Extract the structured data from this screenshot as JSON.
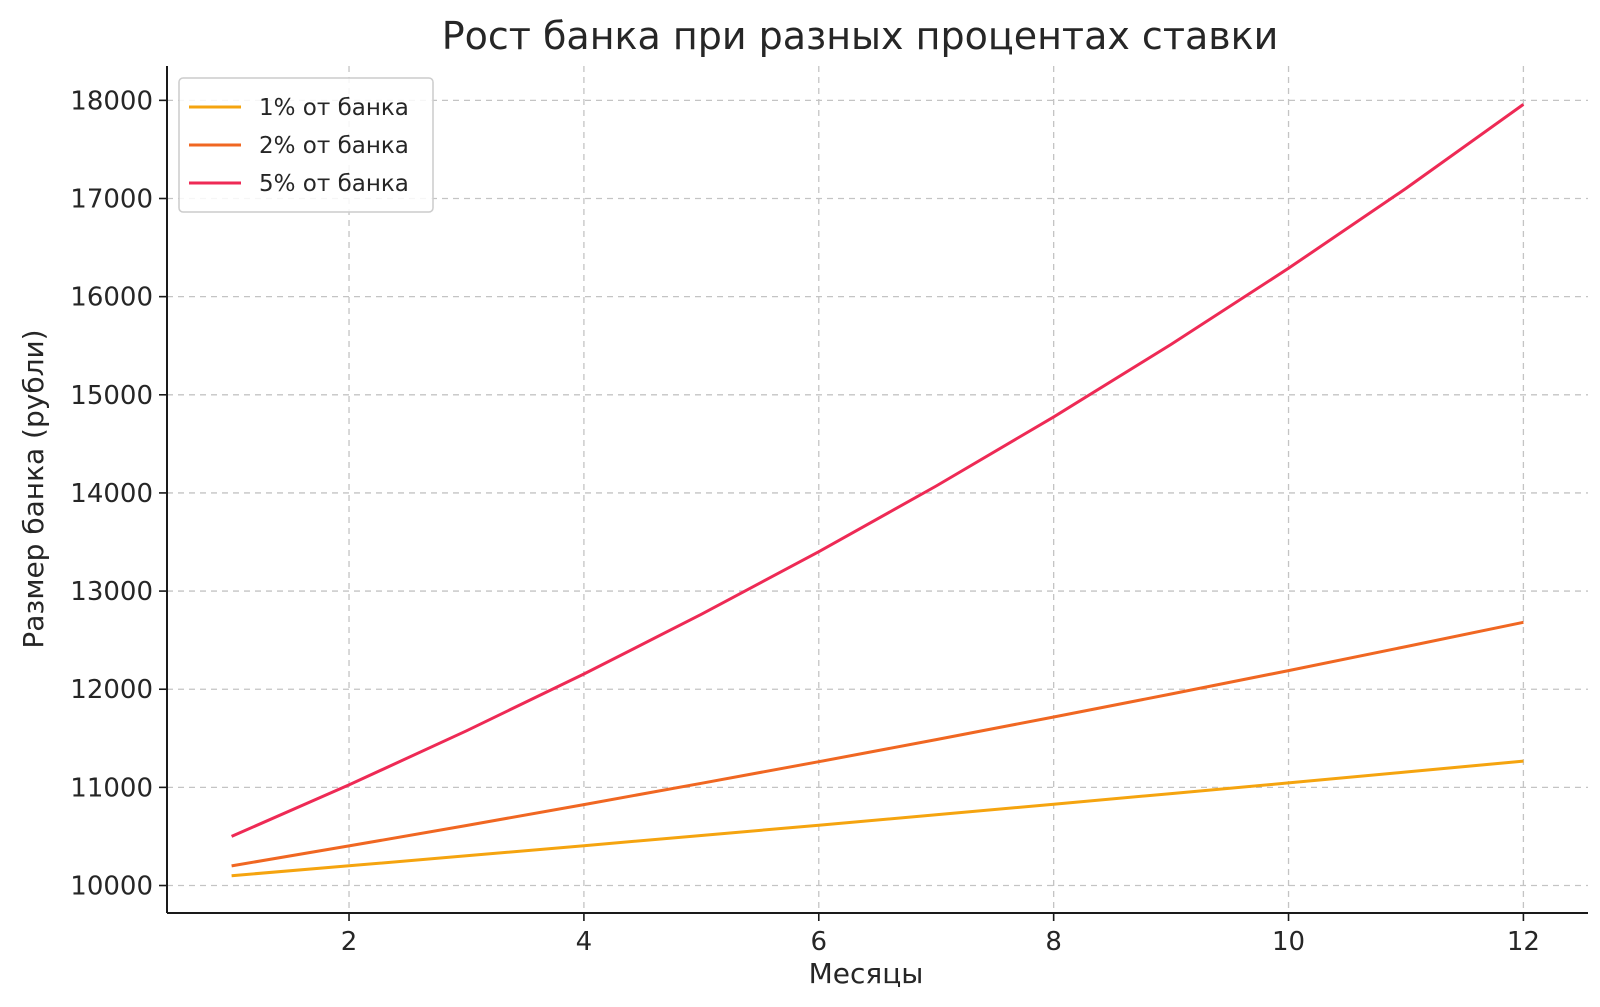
{
  "chart_data": {
    "type": "line",
    "title": "Рост банка при разных процентах ставки",
    "xlabel": "Месяцы",
    "ylabel": "Размер банка (рубли)",
    "x": [
      1,
      2,
      3,
      4,
      5,
      6,
      7,
      8,
      9,
      10,
      11,
      12
    ],
    "xlim": [
      0.45,
      12.55
    ],
    "ylim": [
      9720,
      18350
    ],
    "xticks": [
      2,
      4,
      6,
      8,
      10,
      12
    ],
    "yticks": [
      10000,
      11000,
      12000,
      13000,
      14000,
      15000,
      16000,
      17000,
      18000
    ],
    "grid": true,
    "legend_position": "top-left",
    "series": [
      {
        "name": "1% от банка",
        "color": "#f5a40f",
        "values": [
          10100,
          10201,
          10303,
          10406,
          10510,
          10615,
          10721,
          10829,
          10937,
          11046,
          11157,
          11268
        ]
      },
      {
        "name": "2% от банка",
        "color": "#f06722",
        "values": [
          10200,
          10404,
          10612,
          10824,
          11041,
          11262,
          11487,
          11717,
          11951,
          12190,
          12434,
          12682
        ]
      },
      {
        "name": "5% от банка",
        "color": "#ee2a55",
        "values": [
          10500,
          11025,
          11576,
          12155,
          12763,
          13401,
          14071,
          14775,
          15513,
          16289,
          17103,
          17959
        ]
      }
    ]
  }
}
